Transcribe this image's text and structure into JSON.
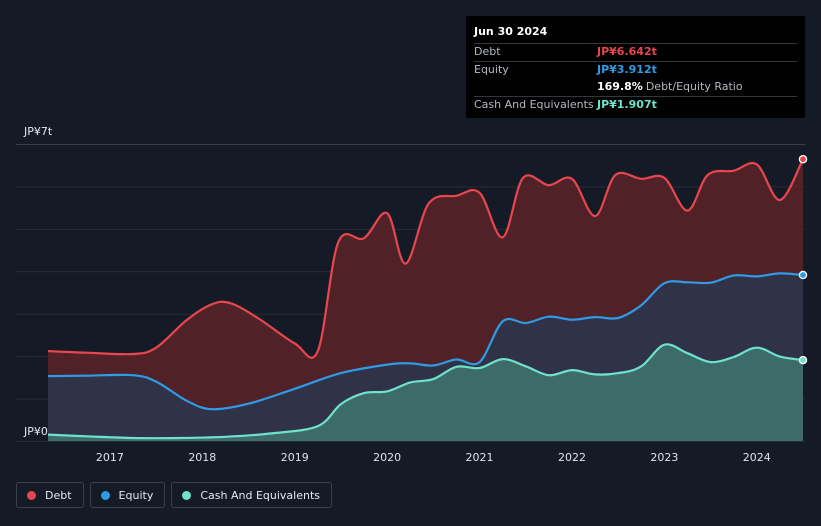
{
  "tooltip": {
    "date": "Jun 30 2024",
    "debt_label": "Debt",
    "debt_value": "JP¥6.642t",
    "equity_label": "Equity",
    "equity_value": "JP¥3.912t",
    "ratio_value": "169.8%",
    "ratio_label": "Debt/Equity Ratio",
    "cash_label": "Cash And Equivalents",
    "cash_value": "JP¥1.907t"
  },
  "legend": {
    "debt": "Debt",
    "equity": "Equity",
    "cash": "Cash And Equivalents"
  },
  "colors": {
    "debt": "#e8464e",
    "equity": "#2f9be6",
    "cash": "#6ee2cb",
    "debt_fill": "#5a2329",
    "equity_fill": "#2e3549",
    "cash_fill": "#3e6f6c"
  },
  "chart_data": {
    "type": "area",
    "title": "",
    "xlabel": "",
    "ylabel": "",
    "unit": "JP¥ trillion",
    "ylim": [
      0,
      7
    ],
    "y_tick_labels": [
      "JP¥0",
      "JP¥7t"
    ],
    "x_ticks": [
      2017,
      2018,
      2019,
      2020,
      2021,
      2022,
      2023,
      2024
    ],
    "x_tick_labels": [
      "2017",
      "2018",
      "2019",
      "2020",
      "2021",
      "2022",
      "2023",
      "2024"
    ],
    "xlim": [
      2016.33,
      2024.5
    ],
    "grid": true,
    "series": [
      {
        "name": "Debt",
        "points": [
          [
            2016.33,
            2.12
          ],
          [
            2016.75,
            2.08
          ],
          [
            2017.25,
            2.05
          ],
          [
            2017.5,
            2.2
          ],
          [
            2017.83,
            2.85
          ],
          [
            2018.1,
            3.22
          ],
          [
            2018.3,
            3.25
          ],
          [
            2018.6,
            2.9
          ],
          [
            2019.0,
            2.3
          ],
          [
            2019.25,
            2.12
          ],
          [
            2019.47,
            4.68
          ],
          [
            2019.75,
            4.78
          ],
          [
            2020.0,
            5.37
          ],
          [
            2020.2,
            4.18
          ],
          [
            2020.45,
            5.6
          ],
          [
            2020.75,
            5.78
          ],
          [
            2021.0,
            5.85
          ],
          [
            2021.25,
            4.8
          ],
          [
            2021.47,
            6.2
          ],
          [
            2021.75,
            6.03
          ],
          [
            2022.0,
            6.18
          ],
          [
            2022.25,
            5.3
          ],
          [
            2022.47,
            6.27
          ],
          [
            2022.75,
            6.18
          ],
          [
            2023.0,
            6.2
          ],
          [
            2023.25,
            5.43
          ],
          [
            2023.47,
            6.27
          ],
          [
            2023.75,
            6.37
          ],
          [
            2024.0,
            6.52
          ],
          [
            2024.25,
            5.68
          ],
          [
            2024.5,
            6.642
          ]
        ]
      },
      {
        "name": "Equity",
        "points": [
          [
            2016.33,
            1.53
          ],
          [
            2016.75,
            1.54
          ],
          [
            2017.25,
            1.55
          ],
          [
            2017.5,
            1.4
          ],
          [
            2017.83,
            0.95
          ],
          [
            2018.1,
            0.75
          ],
          [
            2018.5,
            0.88
          ],
          [
            2019.0,
            1.23
          ],
          [
            2019.5,
            1.6
          ],
          [
            2020.0,
            1.8
          ],
          [
            2020.25,
            1.83
          ],
          [
            2020.5,
            1.78
          ],
          [
            2020.75,
            1.92
          ],
          [
            2021.0,
            1.86
          ],
          [
            2021.25,
            2.82
          ],
          [
            2021.5,
            2.78
          ],
          [
            2021.75,
            2.93
          ],
          [
            2022.0,
            2.86
          ],
          [
            2022.25,
            2.92
          ],
          [
            2022.5,
            2.9
          ],
          [
            2022.75,
            3.2
          ],
          [
            2023.0,
            3.72
          ],
          [
            2023.25,
            3.74
          ],
          [
            2023.5,
            3.73
          ],
          [
            2023.75,
            3.9
          ],
          [
            2024.0,
            3.88
          ],
          [
            2024.25,
            3.95
          ],
          [
            2024.5,
            3.912
          ]
        ]
      },
      {
        "name": "Cash And Equivalents",
        "points": [
          [
            2016.33,
            0.15
          ],
          [
            2016.75,
            0.11
          ],
          [
            2017.25,
            0.07
          ],
          [
            2017.75,
            0.07
          ],
          [
            2018.25,
            0.1
          ],
          [
            2018.75,
            0.18
          ],
          [
            2019.25,
            0.35
          ],
          [
            2019.5,
            0.87
          ],
          [
            2019.75,
            1.13
          ],
          [
            2020.0,
            1.17
          ],
          [
            2020.25,
            1.38
          ],
          [
            2020.5,
            1.46
          ],
          [
            2020.75,
            1.75
          ],
          [
            2021.0,
            1.72
          ],
          [
            2021.25,
            1.93
          ],
          [
            2021.5,
            1.76
          ],
          [
            2021.75,
            1.55
          ],
          [
            2022.0,
            1.67
          ],
          [
            2022.25,
            1.57
          ],
          [
            2022.5,
            1.6
          ],
          [
            2022.75,
            1.76
          ],
          [
            2023.0,
            2.27
          ],
          [
            2023.25,
            2.07
          ],
          [
            2023.5,
            1.86
          ],
          [
            2023.75,
            1.98
          ],
          [
            2024.0,
            2.2
          ],
          [
            2024.25,
            1.99
          ],
          [
            2024.5,
            1.907
          ]
        ]
      }
    ]
  }
}
